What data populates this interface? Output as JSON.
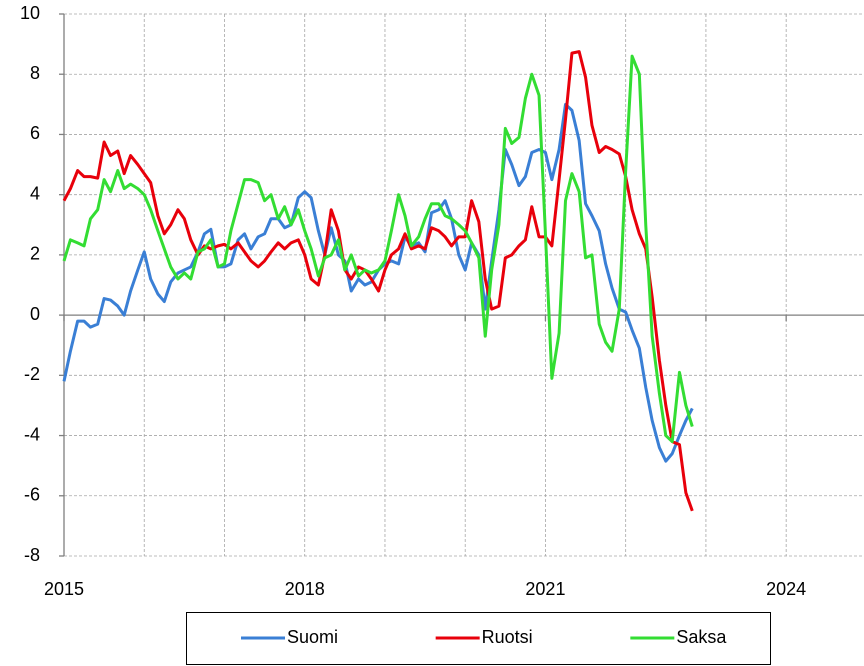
{
  "chart_data": {
    "type": "line",
    "x": [
      2015,
      2015.08,
      2015.17,
      2015.25,
      2015.33,
      2015.42,
      2015.5,
      2015.58,
      2015.67,
      2015.75,
      2015.83,
      2015.92,
      2016,
      2016.08,
      2016.17,
      2016.25,
      2016.33,
      2016.42,
      2016.5,
      2016.58,
      2016.67,
      2016.75,
      2016.83,
      2016.92,
      2017,
      2017.08,
      2017.17,
      2017.25,
      2017.33,
      2017.42,
      2017.5,
      2017.58,
      2017.67,
      2017.75,
      2017.83,
      2017.92,
      2018,
      2018.08,
      2018.17,
      2018.25,
      2018.33,
      2018.42,
      2018.5,
      2018.58,
      2018.67,
      2018.75,
      2018.83,
      2018.92,
      2019,
      2019.08,
      2019.17,
      2019.25,
      2019.33,
      2019.42,
      2019.5,
      2019.58,
      2019.67,
      2019.75,
      2019.83,
      2019.92,
      2020,
      2020.08,
      2020.17,
      2020.25,
      2020.33,
      2020.42,
      2020.5,
      2020.58,
      2020.67,
      2020.75,
      2020.83,
      2020.92,
      2021,
      2021.08,
      2021.17,
      2021.25,
      2021.33,
      2021.42,
      2021.5,
      2021.58,
      2021.67,
      2021.75,
      2021.83,
      2021.92,
      2022,
      2022.08,
      2022.17,
      2022.25,
      2022.33,
      2022.42,
      2022.5,
      2022.58,
      2022.67,
      2022.75,
      2022.83
    ],
    "series": [
      {
        "name": "Suomi",
        "color": "#3a7fd5",
        "values": [
          -2.2,
          -1.2,
          -0.2,
          -0.2,
          -0.4,
          -0.3,
          0.55,
          0.5,
          0.3,
          0.0,
          0.8,
          1.5,
          2.1,
          1.2,
          0.7,
          0.45,
          1.1,
          1.4,
          1.5,
          1.6,
          2.1,
          2.7,
          2.85,
          1.6,
          1.6,
          1.7,
          2.5,
          2.7,
          2.2,
          2.6,
          2.7,
          3.2,
          3.2,
          2.9,
          3.0,
          3.9,
          4.1,
          3.9,
          2.8,
          2.0,
          2.9,
          2.0,
          1.8,
          0.8,
          1.2,
          1.0,
          1.1,
          1.5,
          1.7,
          1.8,
          1.7,
          2.6,
          2.3,
          2.4,
          2.1,
          3.4,
          3.5,
          3.8,
          3.2,
          2.0,
          1.5,
          2.4,
          2.0,
          0.2,
          1.8,
          3.5,
          5.5,
          5.0,
          4.3,
          4.6,
          5.4,
          5.5,
          5.4,
          4.5,
          5.5,
          7.0,
          6.8,
          5.8,
          3.7,
          3.3,
          2.8,
          1.7,
          0.9,
          0.2,
          0.1,
          -0.5,
          -1.1,
          -2.4,
          -3.5,
          -4.4,
          -4.85,
          -4.6,
          -4.0,
          -3.5,
          -3.1
        ]
      },
      {
        "name": "Ruotsi",
        "color": "#e8000b",
        "values": [
          3.8,
          4.2,
          4.8,
          4.6,
          4.6,
          4.55,
          5.75,
          5.3,
          5.45,
          4.7,
          5.3,
          5.0,
          4.7,
          4.4,
          3.3,
          2.7,
          3.0,
          3.5,
          3.2,
          2.5,
          2.0,
          2.3,
          2.2,
          2.3,
          2.35,
          2.2,
          2.4,
          2.1,
          1.8,
          1.6,
          1.8,
          2.1,
          2.4,
          2.2,
          2.4,
          2.5,
          2.0,
          1.2,
          1.0,
          2.0,
          3.5,
          2.8,
          1.5,
          1.2,
          1.6,
          1.5,
          1.2,
          0.8,
          1.5,
          2.0,
          2.2,
          2.7,
          2.2,
          2.3,
          2.2,
          2.9,
          2.8,
          2.6,
          2.3,
          2.6,
          2.6,
          3.8,
          3.1,
          1.2,
          0.2,
          0.3,
          1.9,
          2.0,
          2.3,
          2.5,
          3.6,
          2.6,
          2.6,
          2.3,
          4.5,
          6.5,
          8.7,
          8.75,
          7.9,
          6.3,
          5.4,
          5.6,
          5.5,
          5.35,
          4.6,
          3.5,
          2.7,
          2.2,
          0.6,
          -1.5,
          -3.0,
          -4.2,
          -4.3,
          -5.9,
          -6.5
        ]
      },
      {
        "name": "Saksa",
        "color": "#33dd33",
        "values": [
          1.8,
          2.5,
          2.4,
          2.3,
          3.2,
          3.5,
          4.5,
          4.1,
          4.8,
          4.2,
          4.35,
          4.2,
          4.0,
          3.5,
          2.8,
          2.2,
          1.6,
          1.2,
          1.4,
          1.2,
          2.1,
          2.2,
          2.5,
          1.6,
          1.7,
          2.8,
          3.7,
          4.5,
          4.5,
          4.4,
          3.8,
          4.0,
          3.2,
          3.6,
          3.0,
          3.5,
          2.8,
          2.2,
          1.3,
          1.9,
          2.0,
          2.5,
          1.5,
          2.0,
          1.3,
          1.5,
          1.4,
          1.5,
          1.8,
          2.8,
          4.0,
          3.3,
          2.3,
          2.6,
          3.2,
          3.7,
          3.7,
          3.3,
          3.2,
          3.0,
          2.8,
          2.4,
          1.9,
          -0.7,
          1.5,
          3.0,
          6.2,
          5.7,
          5.9,
          7.2,
          8.0,
          7.3,
          2.7,
          -2.1,
          -0.6,
          3.8,
          4.7,
          4.1,
          1.9,
          2.0,
          -0.3,
          -0.9,
          -1.2,
          0.2,
          4.8,
          8.6,
          8.0,
          3.0,
          -0.7,
          -2.6,
          -4.0,
          -4.2,
          -1.9,
          -3.0,
          -3.7
        ]
      }
    ],
    "xlim": [
      2015,
      2024.97
    ],
    "xticks": [
      2015,
      2018,
      2021,
      2024
    ],
    "x_minor_ticks": [
      2016,
      2017,
      2019,
      2020,
      2022,
      2023
    ],
    "ylim": [
      -8,
      10
    ],
    "yticks": [
      -8,
      -6,
      -4,
      -2,
      0,
      2,
      4,
      6,
      8,
      10
    ],
    "grid": true,
    "legend": "bottom"
  }
}
